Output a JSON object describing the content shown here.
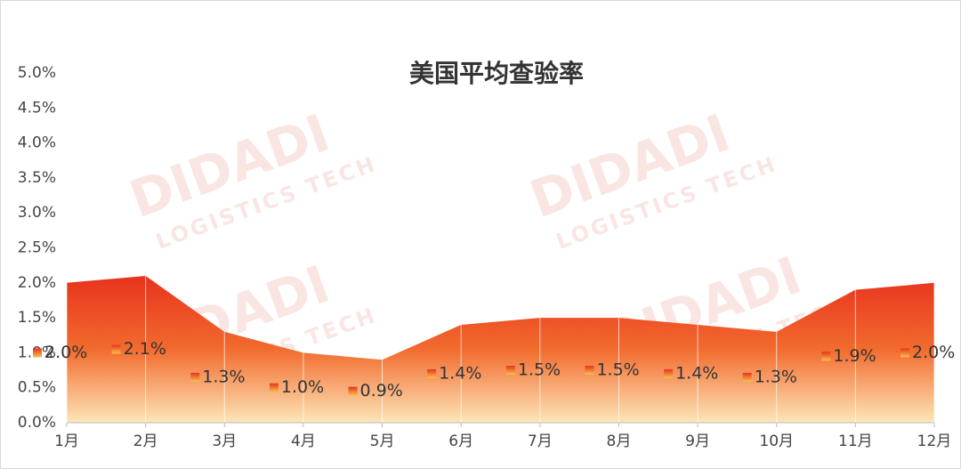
{
  "chart_data": {
    "type": "area",
    "title": "美国平均查验率",
    "categories": [
      "1月",
      "2月",
      "3月",
      "4月",
      "5月",
      "6月",
      "7月",
      "8月",
      "9月",
      "10月",
      "11月",
      "12月"
    ],
    "values": [
      2.0,
      2.1,
      1.3,
      1.0,
      0.9,
      1.4,
      1.5,
      1.5,
      1.4,
      1.3,
      1.9,
      2.0
    ],
    "value_labels": [
      "2.0%",
      "2.1%",
      "1.3%",
      "1.0%",
      "0.9%",
      "1.4%",
      "1.5%",
      "1.5%",
      "1.4%",
      "1.3%",
      "1.9%",
      "2.0%"
    ],
    "color": "#e8321e",
    "ylim": [
      0,
      5
    ],
    "yticks": [
      {
        "value": 0,
        "label": "0.0%"
      },
      {
        "value": 0.5,
        "label": "0.5%"
      },
      {
        "value": 1,
        "label": "1.0%"
      },
      {
        "value": 1.5,
        "label": "1.5%"
      },
      {
        "value": 2,
        "label": "2.0%"
      },
      {
        "value": 2.5,
        "label": "2.5%"
      },
      {
        "value": 3,
        "label": "3.0%"
      },
      {
        "value": 3.5,
        "label": "3.5%"
      },
      {
        "value": 4,
        "label": "4.0%"
      },
      {
        "value": 4.5,
        "label": "4.5%"
      },
      {
        "value": 5,
        "label": "5.0%"
      }
    ],
    "grid": true,
    "watermark": [
      "DIDADI",
      "LOGISTICS TECH"
    ]
  }
}
